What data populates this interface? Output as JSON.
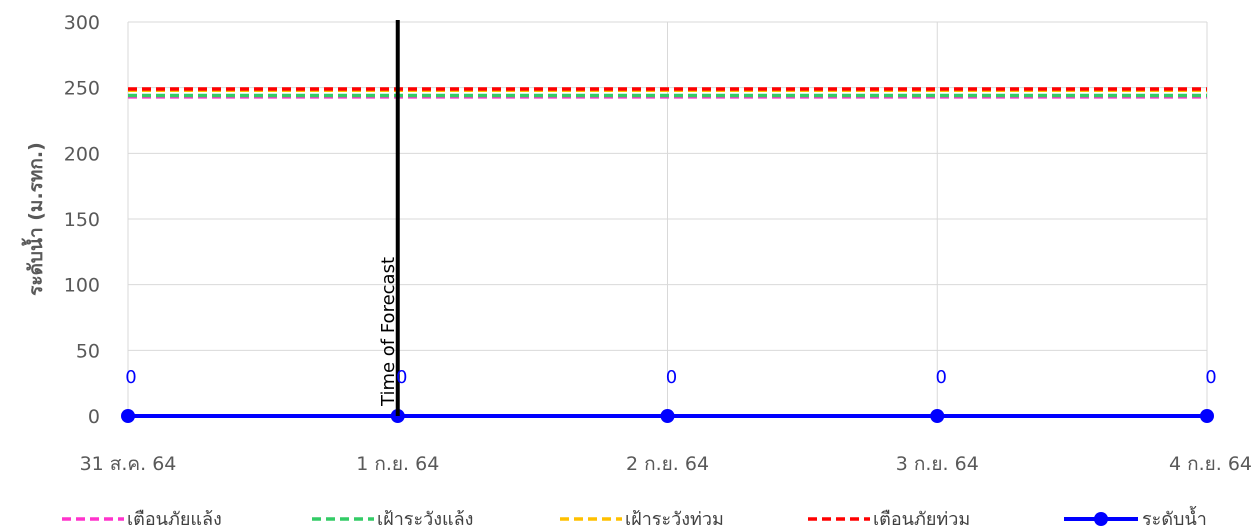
{
  "chart_data": {
    "type": "line",
    "title": "",
    "xlabel": "",
    "ylabel": "ระดับน้ำ (ม.รทก.)",
    "ylim": [
      0,
      300
    ],
    "yticks": [
      0,
      50,
      100,
      150,
      200,
      250,
      300
    ],
    "categories": [
      "31 ส.ค. 64",
      "1 ก.ย. 64",
      "2 ก.ย. 64",
      "3 ก.ย. 64",
      "4 ก.ย. 64"
    ],
    "grid": true,
    "legend_position": "bottom",
    "series": [
      {
        "name": "เตือนภัยแล้ง",
        "style": "dashed",
        "color": "#ff33cc",
        "values": [
          243,
          243,
          243,
          243,
          243
        ]
      },
      {
        "name": "เฝ้าระวังแล้ง",
        "style": "dashed",
        "color": "#33cc66",
        "values": [
          244,
          244,
          244,
          244,
          244
        ]
      },
      {
        "name": "เฝ้าระวังท่วม",
        "style": "dashed",
        "color": "#ffc000",
        "values": [
          248,
          248,
          248,
          248,
          248
        ]
      },
      {
        "name": "เตือนภัยท่วม",
        "style": "dashed",
        "color": "#ff0000",
        "values": [
          249,
          249,
          249,
          249,
          249
        ]
      },
      {
        "name": "ระดับน้ำ",
        "style": "solid-markers",
        "color": "#0000ff",
        "values": [
          0,
          0,
          0,
          0,
          0
        ],
        "data_labels": [
          "0",
          "0",
          "0",
          "0",
          "0"
        ]
      }
    ],
    "annotation": {
      "text": "Time of Forecast",
      "at_category": "1 ก.ย. 64",
      "color": "#000000"
    }
  }
}
